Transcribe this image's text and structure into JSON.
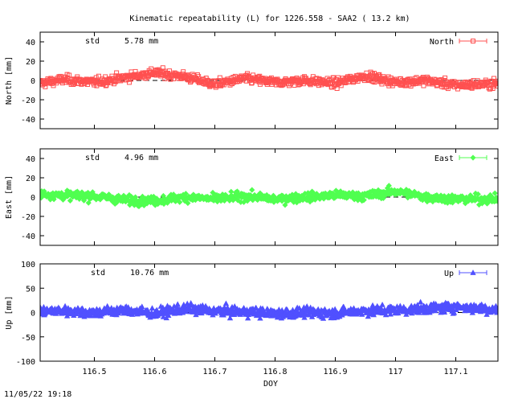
{
  "title": "Kinematic repeatability (L) for 1226.558 - SAA2  ( 13.2 km)",
  "timestamp": "11/05/22 19:18",
  "chart_data": [
    {
      "type": "scatter",
      "series_name": "North",
      "ylabel": "North [mm]",
      "std_label": "std",
      "std_value": "5.78 mm",
      "color": "#ff5050",
      "marker": "square",
      "xlim": [
        116.41,
        117.17
      ],
      "ylim": [
        -50,
        50
      ],
      "yticks": [
        "40",
        "20",
        "0",
        "-20",
        "-40"
      ],
      "ytick_values": [
        40,
        20,
        0,
        -20,
        -40
      ],
      "x": [
        116.41,
        116.45,
        116.5,
        116.55,
        116.6,
        116.65,
        116.7,
        116.75,
        116.8,
        116.85,
        116.9,
        116.95,
        117.0,
        117.05,
        117.1,
        117.17
      ],
      "y": [
        -3,
        1,
        -2,
        3,
        8,
        4,
        -4,
        2,
        -2,
        0,
        -3,
        5,
        -2,
        0,
        -5,
        -3
      ]
    },
    {
      "type": "scatter",
      "series_name": "East",
      "ylabel": "East [mm]",
      "std_label": "std",
      "std_value": "4.96 mm",
      "color": "#50ff50",
      "marker": "diamond",
      "xlim": [
        116.41,
        117.17
      ],
      "ylim": [
        -50,
        50
      ],
      "yticks": [
        "40",
        "20",
        "0",
        "-20",
        "-40"
      ],
      "ytick_values": [
        40,
        20,
        0,
        -20,
        -40
      ],
      "x": [
        116.41,
        116.45,
        116.5,
        116.55,
        116.6,
        116.65,
        116.7,
        116.75,
        116.8,
        116.85,
        116.9,
        116.95,
        117.0,
        117.05,
        117.1,
        117.17
      ],
      "y": [
        3,
        2,
        1,
        -3,
        -4,
        0,
        -2,
        1,
        -2,
        0,
        2,
        1,
        6,
        0,
        -2,
        -2
      ]
    },
    {
      "type": "scatter",
      "series_name": "Up",
      "ylabel": "Up [mm]",
      "std_label": "std",
      "std_value": "10.76 mm",
      "color": "#5050ff",
      "marker": "triangle",
      "xlim": [
        116.41,
        117.17
      ],
      "ylim": [
        -100,
        100
      ],
      "yticks": [
        "100",
        "50",
        "0",
        "-50",
        "-100"
      ],
      "ytick_values": [
        100,
        50,
        0,
        -50,
        -100
      ],
      "x": [
        116.41,
        116.45,
        116.5,
        116.55,
        116.6,
        116.65,
        116.7,
        116.75,
        116.8,
        116.85,
        116.9,
        116.95,
        117.0,
        117.05,
        117.1,
        117.17
      ],
      "y": [
        2,
        4,
        0,
        5,
        -2,
        8,
        3,
        2,
        -2,
        0,
        -1,
        4,
        5,
        8,
        12,
        6
      ]
    }
  ],
  "xaxis": {
    "label": "DOY",
    "ticks": [
      "116.5",
      "116.6",
      "116.7",
      "116.8",
      "116.9",
      "117",
      "117.1"
    ],
    "tick_values": [
      116.5,
      116.6,
      116.7,
      116.8,
      116.9,
      117.0,
      117.1
    ]
  }
}
